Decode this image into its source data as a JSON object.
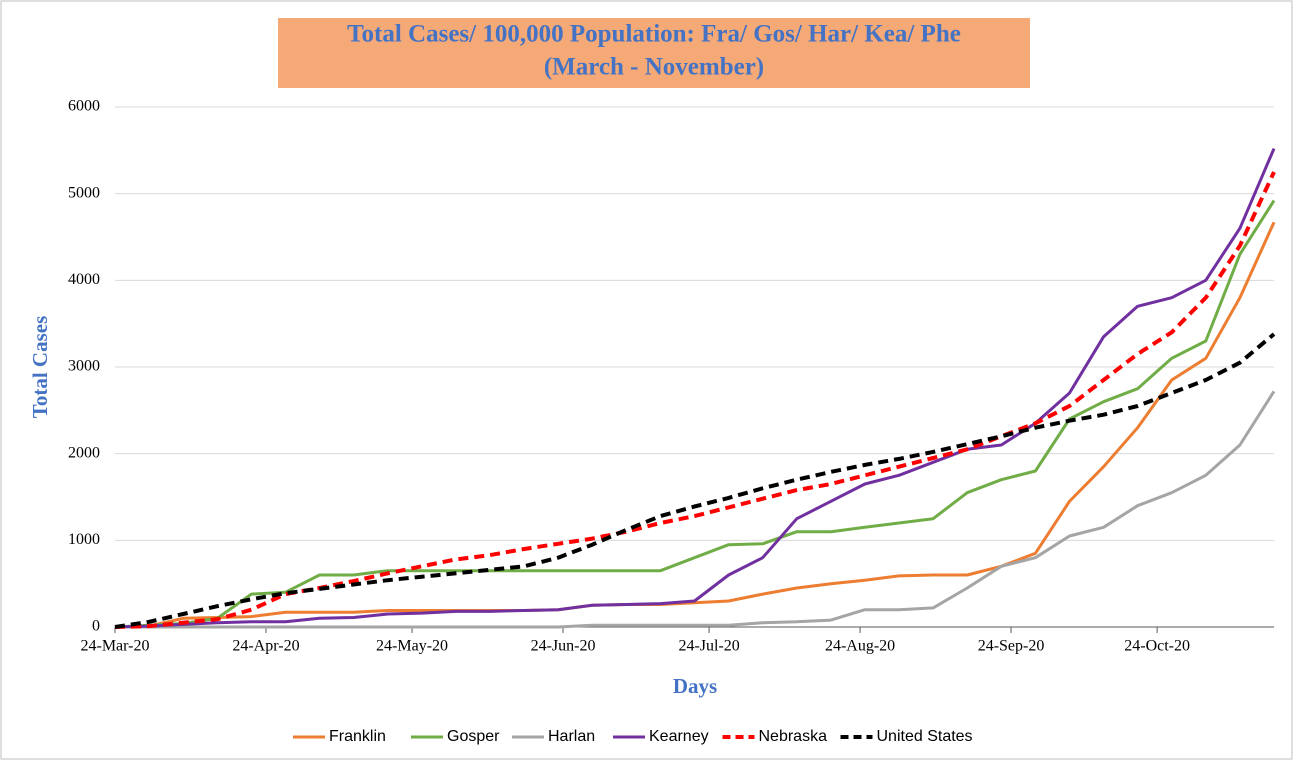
{
  "chart_data": {
    "type": "line",
    "title": "Total Cases/ 100,000 Population: Fra/ Gos/ Har/ Kea/ Phe",
    "subtitle": "(March - November)",
    "x_label": "Days",
    "y_label": "Total Cases",
    "x": [
      "2020-03-24",
      "2020-03-31",
      "2020-04-07",
      "2020-04-14",
      "2020-04-21",
      "2020-04-28",
      "2020-05-05",
      "2020-05-12",
      "2020-05-19",
      "2020-05-26",
      "2020-06-02",
      "2020-06-09",
      "2020-06-16",
      "2020-06-23",
      "2020-06-30",
      "2020-07-07",
      "2020-07-14",
      "2020-07-21",
      "2020-07-28",
      "2020-08-04",
      "2020-08-11",
      "2020-08-18",
      "2020-08-25",
      "2020-09-01",
      "2020-09-08",
      "2020-09-15",
      "2020-09-22",
      "2020-09-29",
      "2020-10-06",
      "2020-10-13",
      "2020-10-20",
      "2020-10-27",
      "2020-11-03",
      "2020-11-10",
      "2020-11-17"
    ],
    "series": [
      {
        "name": "Franklin",
        "color": "#ed7d31",
        "dashed": false,
        "values": [
          0,
          10,
          100,
          110,
          120,
          170,
          170,
          170,
          190,
          190,
          190,
          190,
          190,
          200,
          250,
          260,
          260,
          280,
          300,
          380,
          450,
          500,
          540,
          590,
          600,
          600,
          700,
          850,
          1450,
          1850,
          2300,
          2850,
          3100,
          3800,
          4670
        ]
      },
      {
        "name": "Gosper",
        "color": "#70ad47",
        "dashed": false,
        "values": [
          0,
          20,
          40,
          100,
          380,
          400,
          600,
          600,
          650,
          650,
          650,
          650,
          650,
          650,
          650,
          650,
          650,
          800,
          950,
          960,
          1100,
          1100,
          1150,
          1200,
          1250,
          1550,
          1700,
          1800,
          2400,
          2600,
          2750,
          3100,
          3300,
          4300,
          4920
        ]
      },
      {
        "name": "Harlan",
        "color": "#a5a5a5",
        "dashed": false,
        "values": [
          0,
          0,
          0,
          0,
          0,
          0,
          0,
          0,
          0,
          0,
          0,
          0,
          0,
          0,
          20,
          20,
          20,
          20,
          20,
          50,
          60,
          80,
          200,
          200,
          220,
          450,
          700,
          800,
          1050,
          1150,
          1400,
          1550,
          1750,
          2100,
          2720
        ]
      },
      {
        "name": "Kearney",
        "color": "#7030a0",
        "dashed": false,
        "values": [
          0,
          10,
          30,
          50,
          60,
          60,
          100,
          110,
          150,
          160,
          180,
          180,
          190,
          200,
          250,
          260,
          270,
          300,
          600,
          800,
          1250,
          1450,
          1650,
          1750,
          1900,
          2050,
          2100,
          2350,
          2700,
          3350,
          3700,
          3800,
          4000,
          4600,
          5520
        ]
      },
      {
        "name": "Nebraska",
        "color": "#ff0000",
        "dashed": true,
        "values": [
          0,
          10,
          50,
          90,
          200,
          380,
          450,
          530,
          620,
          700,
          780,
          830,
          900,
          960,
          1020,
          1100,
          1200,
          1280,
          1380,
          1480,
          1580,
          1650,
          1750,
          1850,
          1950,
          2050,
          2200,
          2350,
          2550,
          2850,
          3150,
          3400,
          3800,
          4400,
          5250
        ]
      },
      {
        "name": "United States",
        "color": "#000000",
        "dashed": true,
        "values": [
          0,
          60,
          150,
          240,
          320,
          390,
          440,
          490,
          540,
          580,
          620,
          660,
          700,
          800,
          950,
          1120,
          1280,
          1390,
          1490,
          1600,
          1700,
          1790,
          1870,
          1940,
          2020,
          2110,
          2200,
          2300,
          2380,
          2450,
          2550,
          2700,
          2850,
          3050,
          3380
        ]
      }
    ],
    "xlim": [
      "2020-03-24",
      "2020-11-17"
    ],
    "xticks": [
      {
        "value": "2020-03-24",
        "label": "24-Mar-20"
      },
      {
        "value": "2020-04-24",
        "label": "24-Apr-20"
      },
      {
        "value": "2020-05-24",
        "label": "24-May-20"
      },
      {
        "value": "2020-06-24",
        "label": "24-Jun-20"
      },
      {
        "value": "2020-07-24",
        "label": "24-Jul-20"
      },
      {
        "value": "2020-08-24",
        "label": "24-Aug-20"
      },
      {
        "value": "2020-09-24",
        "label": "24-Sep-20"
      },
      {
        "value": "2020-10-24",
        "label": "24-Oct-20"
      }
    ],
    "ylim": [
      0,
      6000
    ],
    "yticks": [
      0,
      1000,
      2000,
      3000,
      4000,
      5000,
      6000
    ],
    "grid": true,
    "legend": "bottom"
  }
}
